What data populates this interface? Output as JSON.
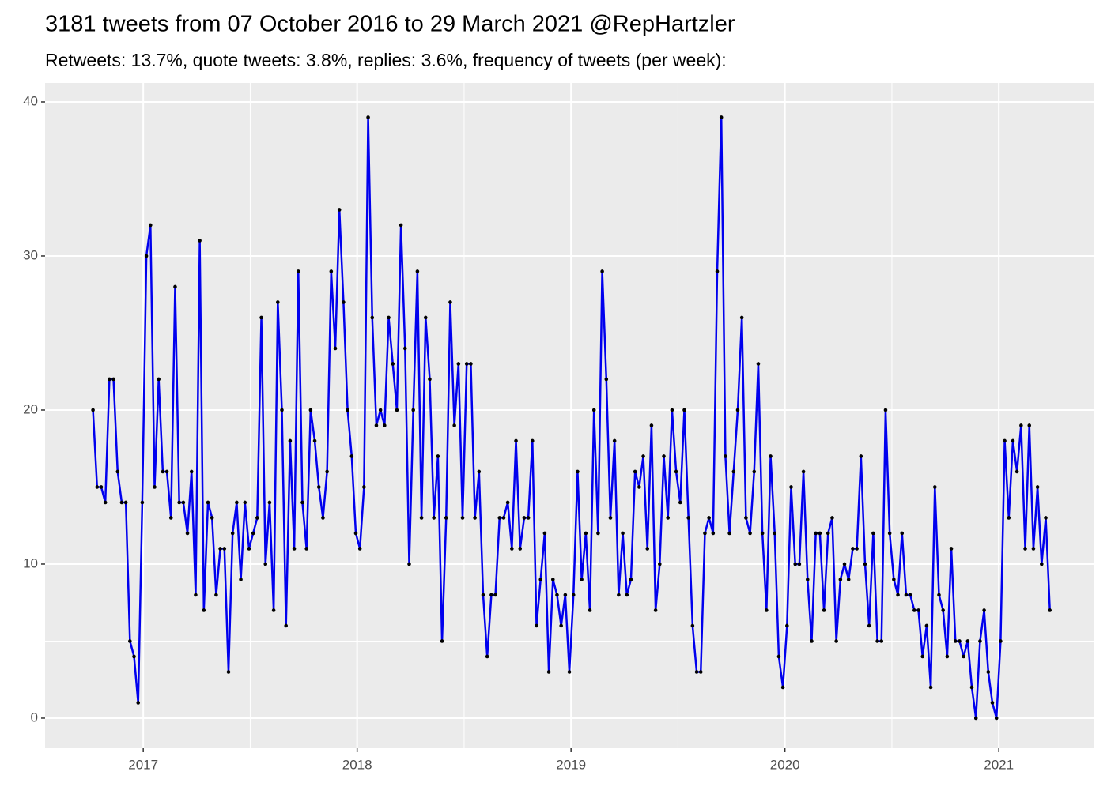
{
  "chart_data": {
    "type": "line",
    "title": "3181 tweets from 07 October 2016 to 29 March 2021 @RepHartzler",
    "subtitle": "Retweets: 13.7%, quote tweets: 3.8%, replies: 3.6%, frequency of tweets (per week):",
    "color": "#0000ee",
    "point_color": "#000000",
    "grid": true,
    "xlim": [
      2016.541,
      2021.443
    ],
    "xticks": [
      2017,
      2018,
      2019,
      2020,
      2021
    ],
    "ylim": [
      -1.95,
      41.23
    ],
    "yticks": [
      0,
      10,
      20,
      30,
      40
    ],
    "x": [
      2016.765,
      2016.7842,
      2016.8034,
      2016.8226,
      2016.8418,
      2016.861,
      2016.8802,
      2016.8994,
      2016.9186,
      2016.9378,
      2016.957,
      2016.9762,
      2016.9954,
      2017.0146,
      2017.0338,
      2017.053,
      2017.0722,
      2017.0914,
      2017.1106,
      2017.1298,
      2017.149,
      2017.1682,
      2017.1874,
      2017.2066,
      2017.2258,
      2017.245,
      2017.2642,
      2017.2834,
      2017.3026,
      2017.3218,
      2017.341,
      2017.3602,
      2017.3794,
      2017.3986,
      2017.4178,
      2017.437,
      2017.4562,
      2017.4754,
      2017.4946,
      2017.5138,
      2017.533,
      2017.5522,
      2017.5714,
      2017.5906,
      2017.6098,
      2017.629,
      2017.6482,
      2017.6674,
      2017.6866,
      2017.7058,
      2017.725,
      2017.7442,
      2017.7634,
      2017.7826,
      2017.8018,
      2017.821,
      2017.8402,
      2017.8594,
      2017.8786,
      2017.8978,
      2017.917,
      2017.9362,
      2017.9554,
      2017.9746,
      2017.9938,
      2018.013,
      2018.0322,
      2018.0514,
      2018.0706,
      2018.0898,
      2018.109,
      2018.1282,
      2018.1474,
      2018.1666,
      2018.1858,
      2018.205,
      2018.2242,
      2018.2434,
      2018.2626,
      2018.2818,
      2018.301,
      2018.3202,
      2018.3394,
      2018.3586,
      2018.3778,
      2018.397,
      2018.4162,
      2018.4354,
      2018.4546,
      2018.4738,
      2018.493,
      2018.5122,
      2018.5314,
      2018.5506,
      2018.5698,
      2018.589,
      2018.6082,
      2018.6274,
      2018.6466,
      2018.6658,
      2018.685,
      2018.7042,
      2018.7234,
      2018.7426,
      2018.7618,
      2018.781,
      2018.8002,
      2018.8194,
      2018.8386,
      2018.8578,
      2018.877,
      2018.8962,
      2018.9154,
      2018.9346,
      2018.9538,
      2018.973,
      2018.9922,
      2019.0114,
      2019.0306,
      2019.0498,
      2019.069,
      2019.0882,
      2019.1074,
      2019.1266,
      2019.1458,
      2019.165,
      2019.1842,
      2019.2034,
      2019.2226,
      2019.2418,
      2019.261,
      2019.2802,
      2019.2994,
      2019.3186,
      2019.3378,
      2019.357,
      2019.3762,
      2019.3954,
      2019.4146,
      2019.4338,
      2019.453,
      2019.4722,
      2019.4914,
      2019.5106,
      2019.5298,
      2019.549,
      2019.5682,
      2019.5874,
      2019.6066,
      2019.6258,
      2019.645,
      2019.6642,
      2019.6834,
      2019.7026,
      2019.7218,
      2019.741,
      2019.7602,
      2019.7794,
      2019.7986,
      2019.8178,
      2019.837,
      2019.8562,
      2019.8754,
      2019.8946,
      2019.9138,
      2019.933,
      2019.9522,
      2019.9714,
      2019.9906,
      2020.0098,
      2020.029,
      2020.0482,
      2020.0674,
      2020.0866,
      2020.1058,
      2020.125,
      2020.1442,
      2020.1634,
      2020.1826,
      2020.2018,
      2020.221,
      2020.2402,
      2020.2594,
      2020.2786,
      2020.2978,
      2020.317,
      2020.3362,
      2020.3554,
      2020.3746,
      2020.3938,
      2020.413,
      2020.4322,
      2020.4514,
      2020.4706,
      2020.4898,
      2020.509,
      2020.5282,
      2020.5474,
      2020.5666,
      2020.5858,
      2020.605,
      2020.6242,
      2020.6434,
      2020.6626,
      2020.6818,
      2020.701,
      2020.7202,
      2020.7394,
      2020.7586,
      2020.7778,
      2020.797,
      2020.8162,
      2020.8354,
      2020.8546,
      2020.8738,
      2020.893,
      2020.9122,
      2020.9314,
      2020.9506,
      2020.9698,
      2020.989,
      2021.0082,
      2021.0274,
      2021.0466,
      2021.0658,
      2021.085,
      2021.1042,
      2021.1234,
      2021.1426,
      2021.1618,
      2021.181,
      2021.2002,
      2021.2194,
      2021.2386
    ],
    "values": [
      20,
      15,
      15,
      14,
      22,
      22,
      16,
      14,
      14,
      5,
      4,
      1,
      14,
      30,
      32,
      15,
      22,
      16,
      16,
      13,
      28,
      14,
      14,
      12,
      16,
      8,
      31,
      7,
      14,
      13,
      8,
      11,
      11,
      3,
      12,
      14,
      9,
      14,
      11,
      12,
      13,
      26,
      10,
      14,
      7,
      27,
      20,
      6,
      18,
      11,
      29,
      14,
      11,
      20,
      18,
      15,
      13,
      16,
      29,
      24,
      33,
      27,
      20,
      17,
      12,
      11,
      15,
      39,
      26,
      19,
      20,
      19,
      26,
      23,
      20,
      32,
      24,
      10,
      20,
      29,
      13,
      26,
      22,
      13,
      17,
      5,
      13,
      27,
      19,
      23,
      13,
      23,
      23,
      13,
      16,
      8,
      4,
      8,
      8,
      13,
      13,
      14,
      11,
      18,
      11,
      13,
      13,
      18,
      6,
      9,
      12,
      3,
      9,
      8,
      6,
      8,
      3,
      8,
      16,
      9,
      12,
      7,
      20,
      12,
      29,
      22,
      13,
      18,
      8,
      12,
      8,
      9,
      16,
      15,
      17,
      11,
      19,
      7,
      10,
      17,
      13,
      20,
      16,
      14,
      20,
      13,
      6,
      3,
      3,
      12,
      13,
      12,
      29,
      39,
      17,
      12,
      16,
      20,
      26,
      13,
      12,
      16,
      23,
      12,
      7,
      17,
      12,
      4,
      2,
      6,
      15,
      10,
      10,
      16,
      9,
      5,
      12,
      12,
      7,
      12,
      13,
      5,
      9,
      10,
      9,
      11,
      11,
      17,
      10,
      6,
      12,
      5,
      5,
      20,
      12,
      9,
      8,
      12,
      8,
      8,
      7,
      7,
      4,
      6,
      2,
      15,
      8,
      7,
      4,
      11,
      5,
      5,
      4,
      5,
      2,
      0,
      5,
      7,
      3,
      1,
      0,
      5,
      18,
      13,
      18,
      16,
      19,
      11,
      19,
      11,
      15,
      10,
      13,
      7
    ]
  }
}
